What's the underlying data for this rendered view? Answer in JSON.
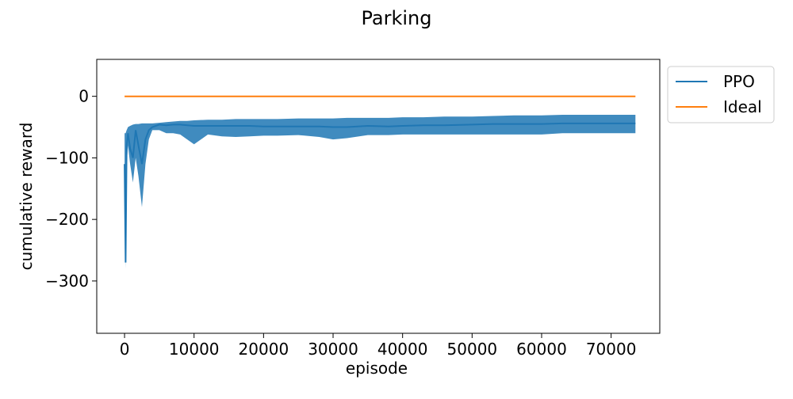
{
  "chart_data": {
    "type": "line",
    "title": "Parking",
    "xlabel": "episode",
    "ylabel": "cumulative reward",
    "xlim": [
      -4000,
      77000
    ],
    "ylim": [
      -385,
      60
    ],
    "x_ticks": [
      0,
      10000,
      20000,
      30000,
      40000,
      50000,
      60000,
      70000
    ],
    "x_tick_labels": [
      "0",
      "10000",
      "20000",
      "30000",
      "40000",
      "50000",
      "60000",
      "70000"
    ],
    "y_ticks": [
      0,
      -100,
      -200,
      -300
    ],
    "y_tick_labels": [
      "0",
      "−100",
      "−200",
      "−300"
    ],
    "grid": false,
    "legend": "outside-top-right",
    "series": [
      {
        "name": "PPO",
        "color": "#1f77b4",
        "x": [
          0,
          150,
          300,
          500,
          800,
          1200,
          1600,
          2000,
          2500,
          3000,
          3500,
          4000,
          5000,
          6000,
          7000,
          8000,
          9000,
          10000,
          12000,
          14000,
          16000,
          18000,
          20000,
          22000,
          25000,
          28000,
          30000,
          32000,
          35000,
          38000,
          40000,
          43000,
          46000,
          50000,
          53000,
          56000,
          60000,
          63000,
          66000,
          70000,
          73500
        ],
        "y": [
          -110,
          -270,
          -80,
          -60,
          -85,
          -100,
          -55,
          -80,
          -110,
          -70,
          -55,
          -50,
          -46,
          -47,
          -46,
          -46,
          -47,
          -48,
          -48,
          -48,
          -48,
          -48,
          -49,
          -49,
          -49,
          -49,
          -50,
          -50,
          -48,
          -49,
          -48,
          -47,
          -47,
          -46,
          -45,
          -45,
          -45,
          -44,
          -44,
          -44,
          -44
        ],
        "band_low": [
          -130,
          -280,
          -110,
          -80,
          -110,
          -140,
          -100,
          -130,
          -180,
          -110,
          -70,
          -55,
          -55,
          -60,
          -60,
          -62,
          -70,
          -78,
          -62,
          -65,
          -66,
          -65,
          -64,
          -64,
          -63,
          -66,
          -70,
          -68,
          -63,
          -63,
          -62,
          -62,
          -62,
          -62,
          -62,
          -62,
          -62,
          -60,
          -60,
          -60,
          -60
        ],
        "band_high": [
          -60,
          -60,
          -55,
          -50,
          -48,
          -46,
          -45,
          -45,
          -44,
          -44,
          -44,
          -44,
          -43,
          -42,
          -41,
          -40,
          -40,
          -39,
          -38,
          -38,
          -37,
          -37,
          -37,
          -37,
          -36,
          -36,
          -36,
          -35,
          -35,
          -35,
          -34,
          -34,
          -33,
          -33,
          -32,
          -31,
          -31,
          -30,
          -30,
          -30,
          -30
        ]
      },
      {
        "name": "Ideal",
        "color": "#ff7f0e",
        "x": [
          0,
          73500
        ],
        "y": [
          0,
          0
        ]
      }
    ]
  }
}
